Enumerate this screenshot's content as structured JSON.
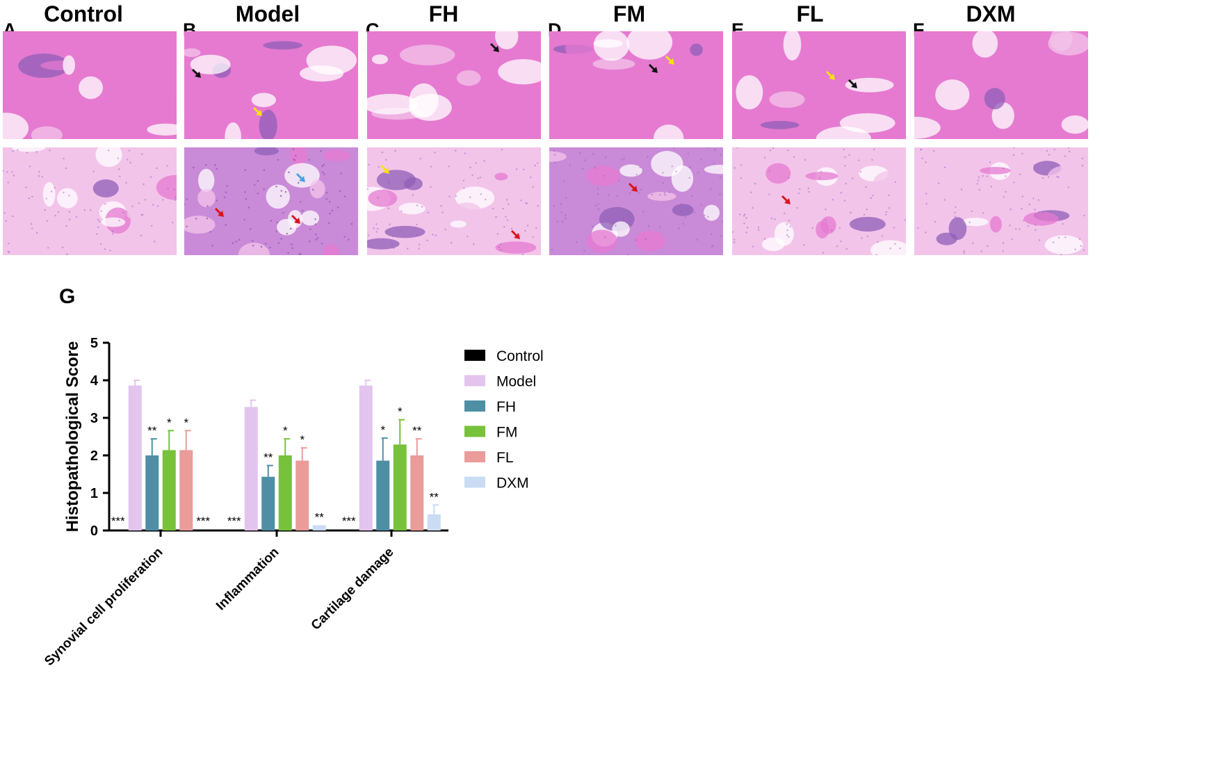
{
  "panels": [
    {
      "letter": "A",
      "title": "Control"
    },
    {
      "letter": "B",
      "title": "Model"
    },
    {
      "letter": "C",
      "title": "FH"
    },
    {
      "letter": "D",
      "title": "FM"
    },
    {
      "letter": "E",
      "title": "FL"
    },
    {
      "letter": "F",
      "title": "DXM"
    }
  ],
  "chart_letter": "G",
  "colors": {
    "tissue_pink": "#e57ad0",
    "tissue_light": "#f3c4ea",
    "tissue_purple": "#8f5fb8",
    "arrow_black": "#111111",
    "arrow_yellow": "#f5e214",
    "arrow_red": "#d8141c",
    "arrow_blue": "#4aa3e0"
  },
  "chart_data": {
    "type": "bar",
    "title": "",
    "xlabel": "",
    "ylabel": "Histopathological Score",
    "ylim": [
      0,
      5
    ],
    "yticks": [
      "0",
      "1",
      "2",
      "3",
      "4",
      "5"
    ],
    "categories": [
      "Synovial cell proliferation",
      "Inflammation",
      "Cartilage damage"
    ],
    "legend_position": "right",
    "series": [
      {
        "name": "Control",
        "color": "#000000",
        "values": [
          0,
          0,
          0
        ],
        "errors": [
          0,
          0,
          0
        ],
        "sig": [
          "***",
          "***",
          "***"
        ]
      },
      {
        "name": "Model",
        "color": "#e3c4ee",
        "values": [
          3.86,
          3.29,
          3.86
        ],
        "errors": [
          0.14,
          0.18,
          0.14
        ],
        "sig": [
          "",
          "",
          ""
        ]
      },
      {
        "name": "FH",
        "color": "#4e8fa6",
        "values": [
          2.0,
          1.43,
          1.86
        ],
        "errors": [
          0.44,
          0.3,
          0.6
        ],
        "sig": [
          "**",
          "**",
          "*"
        ]
      },
      {
        "name": "FM",
        "color": "#77c13b",
        "values": [
          2.14,
          2.0,
          2.29
        ],
        "errors": [
          0.52,
          0.44,
          0.66
        ],
        "sig": [
          "*",
          "*",
          "*"
        ]
      },
      {
        "name": "FL",
        "color": "#e99c9a",
        "values": [
          2.14,
          1.86,
          2.0
        ],
        "errors": [
          0.52,
          0.34,
          0.44
        ],
        "sig": [
          "*",
          "*",
          "**"
        ]
      },
      {
        "name": "DXM",
        "color": "#c9dcf4",
        "values": [
          0,
          0.14,
          0.43
        ],
        "errors": [
          0,
          0.0,
          0.25
        ],
        "sig": [
          "***",
          "**",
          "**"
        ]
      }
    ]
  }
}
